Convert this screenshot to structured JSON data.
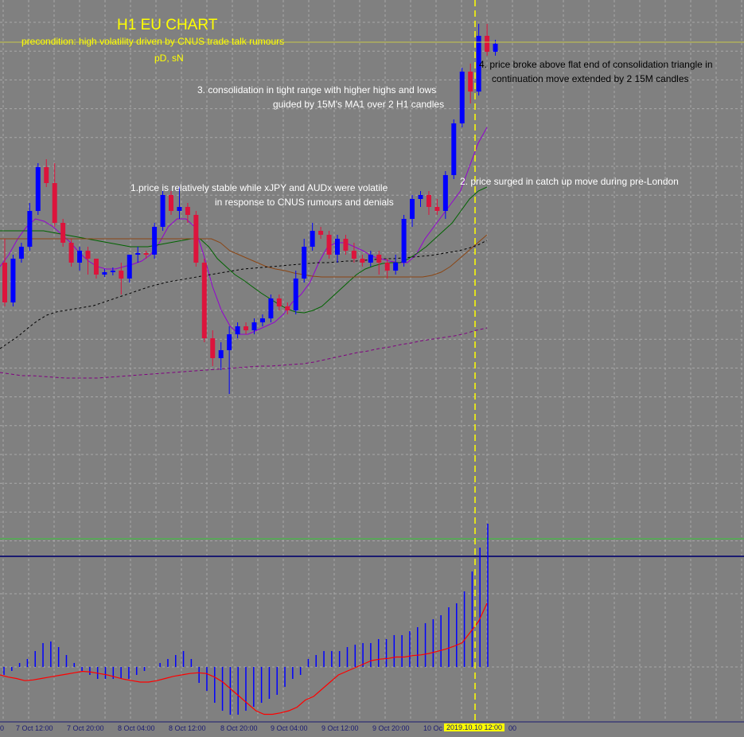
{
  "header": {
    "title": "H1 EU CHART",
    "precondition": "precondition: high volatility driven by CNUS trade talk rumours",
    "tags": "pD, sN"
  },
  "annotations": {
    "note1_line1": "1.price is relatively stable while xJPY and AUDx were volatile",
    "note1_line2": "in response to CNUS rumours and denials",
    "note2": "2. price surged in catch up move during pre-London",
    "note3_line1": "3. consolidation in tight range with higher highs and lows",
    "note3_line2": "guided by 15M's MA1 over 2 H1 candles",
    "note4_line1": "4. price broke above flat end of consolidation triangle in",
    "note4_line2": "continuation move extended by 2 15M candles"
  },
  "x_axis": {
    "labels": [
      "7 Oct 12:00",
      "7 Oct 20:00",
      "8 Oct 04:00",
      "8 Oct 12:00",
      "8 Oct 20:00",
      "9 Oct 04:00",
      "9 Oct 12:00",
      "9 Oct 20:00",
      "10 Oc"
    ],
    "cursor_label": "2019.10.10 12:00",
    "edge_left": "0",
    "edge_right": "00"
  },
  "colors": {
    "background": "#808080",
    "bull_candle": "#0000ff",
    "bear_candle": "#dc143c",
    "ma_fast": "#9400d3",
    "ma_mid": "#006400",
    "ma_slow": "#8b4513",
    "ma_long": "#000000",
    "ma_longest": "#800080",
    "macd_hist": "#0000ff",
    "macd_signal": "#ff0000",
    "cursor": "#ffff00"
  },
  "chart_data": {
    "type": "candlestick",
    "timeframe": "H1",
    "candles_ohlc": [
      [
        330,
        380,
        300,
        385
      ],
      [
        380,
        325,
        320,
        385
      ],
      [
        325,
        310,
        305,
        330
      ],
      [
        310,
        265,
        255,
        315
      ],
      [
        265,
        210,
        205,
        270
      ],
      [
        210,
        230,
        200,
        235
      ],
      [
        230,
        280,
        205,
        285
      ],
      [
        280,
        305,
        275,
        310
      ],
      [
        305,
        330,
        300,
        335
      ],
      [
        330,
        315,
        310,
        340
      ],
      [
        315,
        325,
        310,
        345
      ],
      [
        325,
        345,
        340,
        350
      ],
      [
        345,
        342,
        338,
        348
      ],
      [
        342,
        340,
        336,
        346
      ],
      [
        340,
        350,
        330,
        370
      ],
      [
        350,
        320,
        320,
        355
      ],
      [
        320,
        318,
        310,
        330
      ],
      [
        318,
        320,
        315,
        325
      ],
      [
        320,
        285,
        280,
        325
      ],
      [
        285,
        245,
        240,
        290
      ],
      [
        245,
        265,
        240,
        270
      ],
      [
        265,
        260,
        235,
        275
      ],
      [
        260,
        270,
        255,
        280
      ],
      [
        270,
        330,
        265,
        335
      ],
      [
        330,
        425,
        325,
        430
      ],
      [
        425,
        450,
        415,
        460
      ],
      [
        450,
        440,
        430,
        465
      ],
      [
        440,
        420,
        410,
        495
      ],
      [
        420,
        410,
        405,
        425
      ],
      [
        410,
        415,
        405,
        420
      ],
      [
        415,
        405,
        400,
        420
      ],
      [
        405,
        400,
        395,
        410
      ],
      [
        400,
        375,
        370,
        405
      ],
      [
        375,
        385,
        370,
        390
      ],
      [
        385,
        390,
        380,
        395
      ],
      [
        390,
        350,
        340,
        395
      ],
      [
        350,
        310,
        300,
        355
      ],
      [
        310,
        290,
        280,
        315
      ],
      [
        290,
        295,
        285,
        300
      ],
      [
        295,
        320,
        290,
        325
      ],
      [
        320,
        300,
        295,
        330
      ],
      [
        300,
        315,
        295,
        320
      ],
      [
        315,
        325,
        305,
        330
      ],
      [
        325,
        330,
        320,
        335
      ],
      [
        330,
        320,
        315,
        335
      ],
      [
        320,
        330,
        315,
        345
      ],
      [
        330,
        340,
        325,
        350
      ],
      [
        340,
        330,
        320,
        345
      ],
      [
        330,
        275,
        270,
        335
      ],
      [
        275,
        250,
        245,
        285
      ],
      [
        250,
        245,
        240,
        260
      ],
      [
        245,
        260,
        240,
        270
      ],
      [
        260,
        265,
        250,
        270
      ],
      [
        265,
        220,
        215,
        275
      ],
      [
        220,
        155,
        150,
        225
      ],
      [
        155,
        90,
        85,
        160
      ],
      [
        90,
        115,
        80,
        130
      ],
      [
        115,
        45,
        30,
        120
      ],
      [
        45,
        65,
        30,
        70
      ],
      [
        65,
        55,
        50,
        70
      ]
    ],
    "moving_averages": [
      {
        "values": [
          335,
          320,
          300,
          285,
          275,
          278,
          285,
          295,
          305,
          318,
          328,
          335,
          338,
          338,
          335,
          332,
          328,
          320,
          305,
          285,
          275,
          275,
          285,
          320,
          360,
          390,
          410,
          420,
          420,
          415,
          410,
          405,
          395,
          380,
          370,
          355,
          330,
          310,
          305,
          305,
          310,
          315,
          322,
          325,
          328,
          330,
          330,
          320,
          300,
          285,
          270,
          255,
          240,
          210,
          180,
          160
        ]
      },
      {
        "values": [
          290,
          290,
          290,
          290,
          290,
          290,
          292,
          294,
          296,
          298,
          300,
          302,
          304,
          306,
          308,
          310,
          310,
          310,
          308,
          306,
          304,
          302,
          300,
          300,
          310,
          325,
          335,
          345,
          352,
          360,
          368,
          375,
          382,
          388,
          392,
          393,
          390,
          385,
          375,
          365,
          355,
          345,
          338,
          334,
          331,
          330,
          330,
          325,
          318,
          310,
          300,
          290,
          280,
          265,
          250,
          240,
          235
        ]
      },
      {
        "values": [
          300,
          300,
          300,
          300,
          300,
          300,
          300,
          300,
          300,
          300,
          300,
          300,
          300,
          300,
          300,
          300,
          300,
          300,
          300,
          300,
          300,
          300,
          300,
          300,
          305,
          315,
          320,
          325,
          330,
          335,
          338,
          340,
          343,
          345,
          347,
          348,
          348,
          348,
          348,
          348,
          348,
          348,
          348,
          348,
          348,
          348,
          348,
          346,
          342,
          335,
          325,
          315,
          305,
          295
        ]
      },
      {
        "values": [
          438,
          430,
          422,
          412,
          403,
          396,
          392,
          390,
          388,
          386,
          384,
          380,
          376,
          372,
          368,
          364,
          360,
          357,
          354,
          352,
          350,
          348,
          346,
          344,
          342,
          340,
          338,
          337,
          336,
          335,
          334,
          333,
          332,
          331,
          330,
          330,
          329,
          328,
          328,
          327,
          326,
          325,
          325,
          324,
          323,
          322,
          321,
          319,
          317,
          315,
          312,
          308,
          302
        ]
      },
      {
        "values": [
          468,
          470,
          472,
          472,
          473,
          474,
          475,
          475,
          475,
          475,
          474,
          473,
          472,
          471,
          470,
          469,
          468,
          467,
          466,
          465,
          464,
          463,
          462,
          461,
          460,
          460,
          459,
          458,
          457,
          455,
          452,
          449,
          446,
          443,
          441,
          438,
          436,
          433,
          431,
          428,
          426,
          424,
          422,
          419,
          415,
          412
        ]
      }
    ],
    "macd": {
      "histogram": [
        -10,
        -5,
        5,
        10,
        20,
        30,
        32,
        25,
        15,
        5,
        -5,
        -10,
        -15,
        -15,
        -15,
        -15,
        -15,
        -10,
        -5,
        0,
        5,
        10,
        15,
        20,
        10,
        -20,
        -30,
        -45,
        -55,
        -60,
        -60,
        -55,
        -50,
        -45,
        -40,
        -35,
        -25,
        -15,
        -10,
        10,
        15,
        20,
        20,
        20,
        25,
        28,
        30,
        30,
        35,
        35,
        40,
        40,
        45,
        50,
        55,
        60,
        65,
        75,
        80,
        95,
        120,
        150,
        180
      ],
      "signal": [
        0,
        -3,
        -5,
        -8,
        -7,
        -5,
        -3,
        -1,
        1,
        3,
        5,
        4,
        2,
        0,
        -3,
        -6,
        -8,
        -10,
        -10,
        -8,
        -5,
        -2,
        0,
        2,
        3,
        2,
        -3,
        -10,
        -20,
        -30,
        -40,
        -50,
        -55,
        -55,
        -53,
        -50,
        -45,
        -35,
        -30,
        -20,
        -10,
        0,
        5,
        10,
        15,
        20,
        22,
        23,
        25,
        25,
        27,
        28,
        30,
        33,
        36,
        40,
        45,
        60,
        75,
        100
      ]
    },
    "cursor": {
      "time": "2019.10.10 12:00"
    },
    "grid": true
  }
}
